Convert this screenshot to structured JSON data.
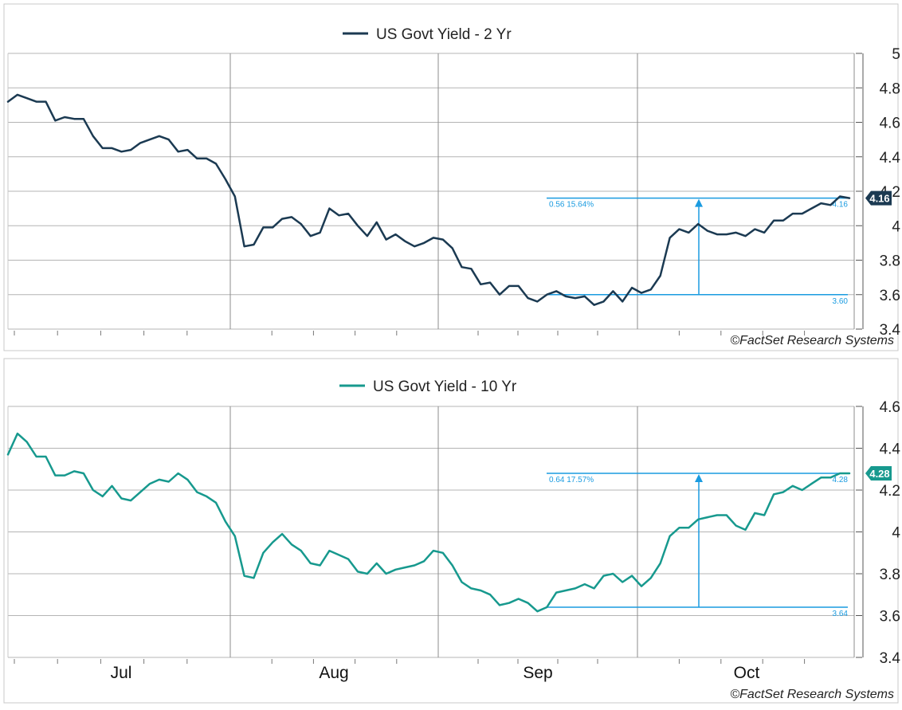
{
  "copyright": "©FactSet Research Systems",
  "x_labels": [
    "Jul",
    "Aug",
    "Sep",
    "Oct"
  ],
  "chart_data": [
    {
      "type": "line",
      "legend_position": "top-center",
      "grid": true,
      "ylim": [
        3.4,
        5.0
      ],
      "y_ticks": [
        "3.4",
        "3.6",
        "3.8",
        "4",
        "4.2",
        "4.4",
        "4.6",
        "4.8",
        "5"
      ],
      "series": [
        {
          "name": "US Govt Yield - 2 Yr",
          "color": "#1b3a52",
          "values": [
            4.72,
            4.76,
            4.74,
            4.72,
            4.72,
            4.61,
            4.63,
            4.62,
            4.62,
            4.52,
            4.45,
            4.45,
            4.43,
            4.44,
            4.48,
            4.5,
            4.52,
            4.5,
            4.43,
            4.44,
            4.39,
            4.39,
            4.36,
            4.27,
            4.17,
            3.88,
            3.89,
            3.99,
            3.99,
            4.04,
            4.05,
            4.01,
            3.94,
            3.96,
            4.1,
            4.06,
            4.07,
            4.0,
            3.94,
            4.02,
            3.92,
            3.95,
            3.91,
            3.88,
            3.9,
            3.93,
            3.92,
            3.87,
            3.76,
            3.75,
            3.66,
            3.67,
            3.6,
            3.65,
            3.65,
            3.58,
            3.56,
            3.6,
            3.62,
            3.59,
            3.58,
            3.59,
            3.54,
            3.56,
            3.62,
            3.56,
            3.64,
            3.61,
            3.63,
            3.71,
            3.93,
            3.98,
            3.96,
            4.01,
            3.97,
            3.95,
            3.95,
            3.96,
            3.94,
            3.98,
            3.96,
            4.03,
            4.03,
            4.07,
            4.07,
            4.1,
            4.13,
            4.12,
            4.17,
            4.16
          ]
        }
      ],
      "last_value_label": "4.16",
      "range_annotation": {
        "low": 3.6,
        "high": 4.16,
        "low_label": "3.60",
        "high_label": "4.16",
        "change_label": "0.56 15.64%"
      }
    },
    {
      "type": "line",
      "legend_position": "top-center",
      "grid": true,
      "ylim": [
        3.4,
        4.6
      ],
      "y_ticks": [
        "3.4",
        "3.6",
        "3.8",
        "4",
        "4.2",
        "4.4",
        "4.6"
      ],
      "series": [
        {
          "name": "US Govt Yield - 10 Yr",
          "color": "#17998e",
          "values": [
            4.37,
            4.47,
            4.43,
            4.36,
            4.36,
            4.27,
            4.27,
            4.29,
            4.28,
            4.2,
            4.17,
            4.22,
            4.16,
            4.15,
            4.19,
            4.23,
            4.25,
            4.24,
            4.28,
            4.25,
            4.19,
            4.17,
            4.14,
            4.05,
            3.98,
            3.79,
            3.78,
            3.9,
            3.95,
            3.99,
            3.94,
            3.91,
            3.85,
            3.84,
            3.91,
            3.89,
            3.87,
            3.81,
            3.8,
            3.85,
            3.8,
            3.82,
            3.83,
            3.84,
            3.86,
            3.91,
            3.9,
            3.84,
            3.76,
            3.73,
            3.72,
            3.7,
            3.65,
            3.66,
            3.68,
            3.66,
            3.62,
            3.64,
            3.71,
            3.72,
            3.73,
            3.75,
            3.73,
            3.79,
            3.8,
            3.76,
            3.79,
            3.74,
            3.78,
            3.85,
            3.98,
            4.02,
            4.02,
            4.06,
            4.07,
            4.08,
            4.08,
            4.03,
            4.01,
            4.09,
            4.08,
            4.18,
            4.19,
            4.22,
            4.2,
            4.23,
            4.26,
            4.26,
            4.28,
            4.28
          ]
        }
      ],
      "last_value_label": "4.28",
      "range_annotation": {
        "low": 3.64,
        "high": 4.28,
        "low_label": "3.64",
        "high_label": "4.28",
        "change_label": "0.64 17.57%"
      }
    }
  ]
}
